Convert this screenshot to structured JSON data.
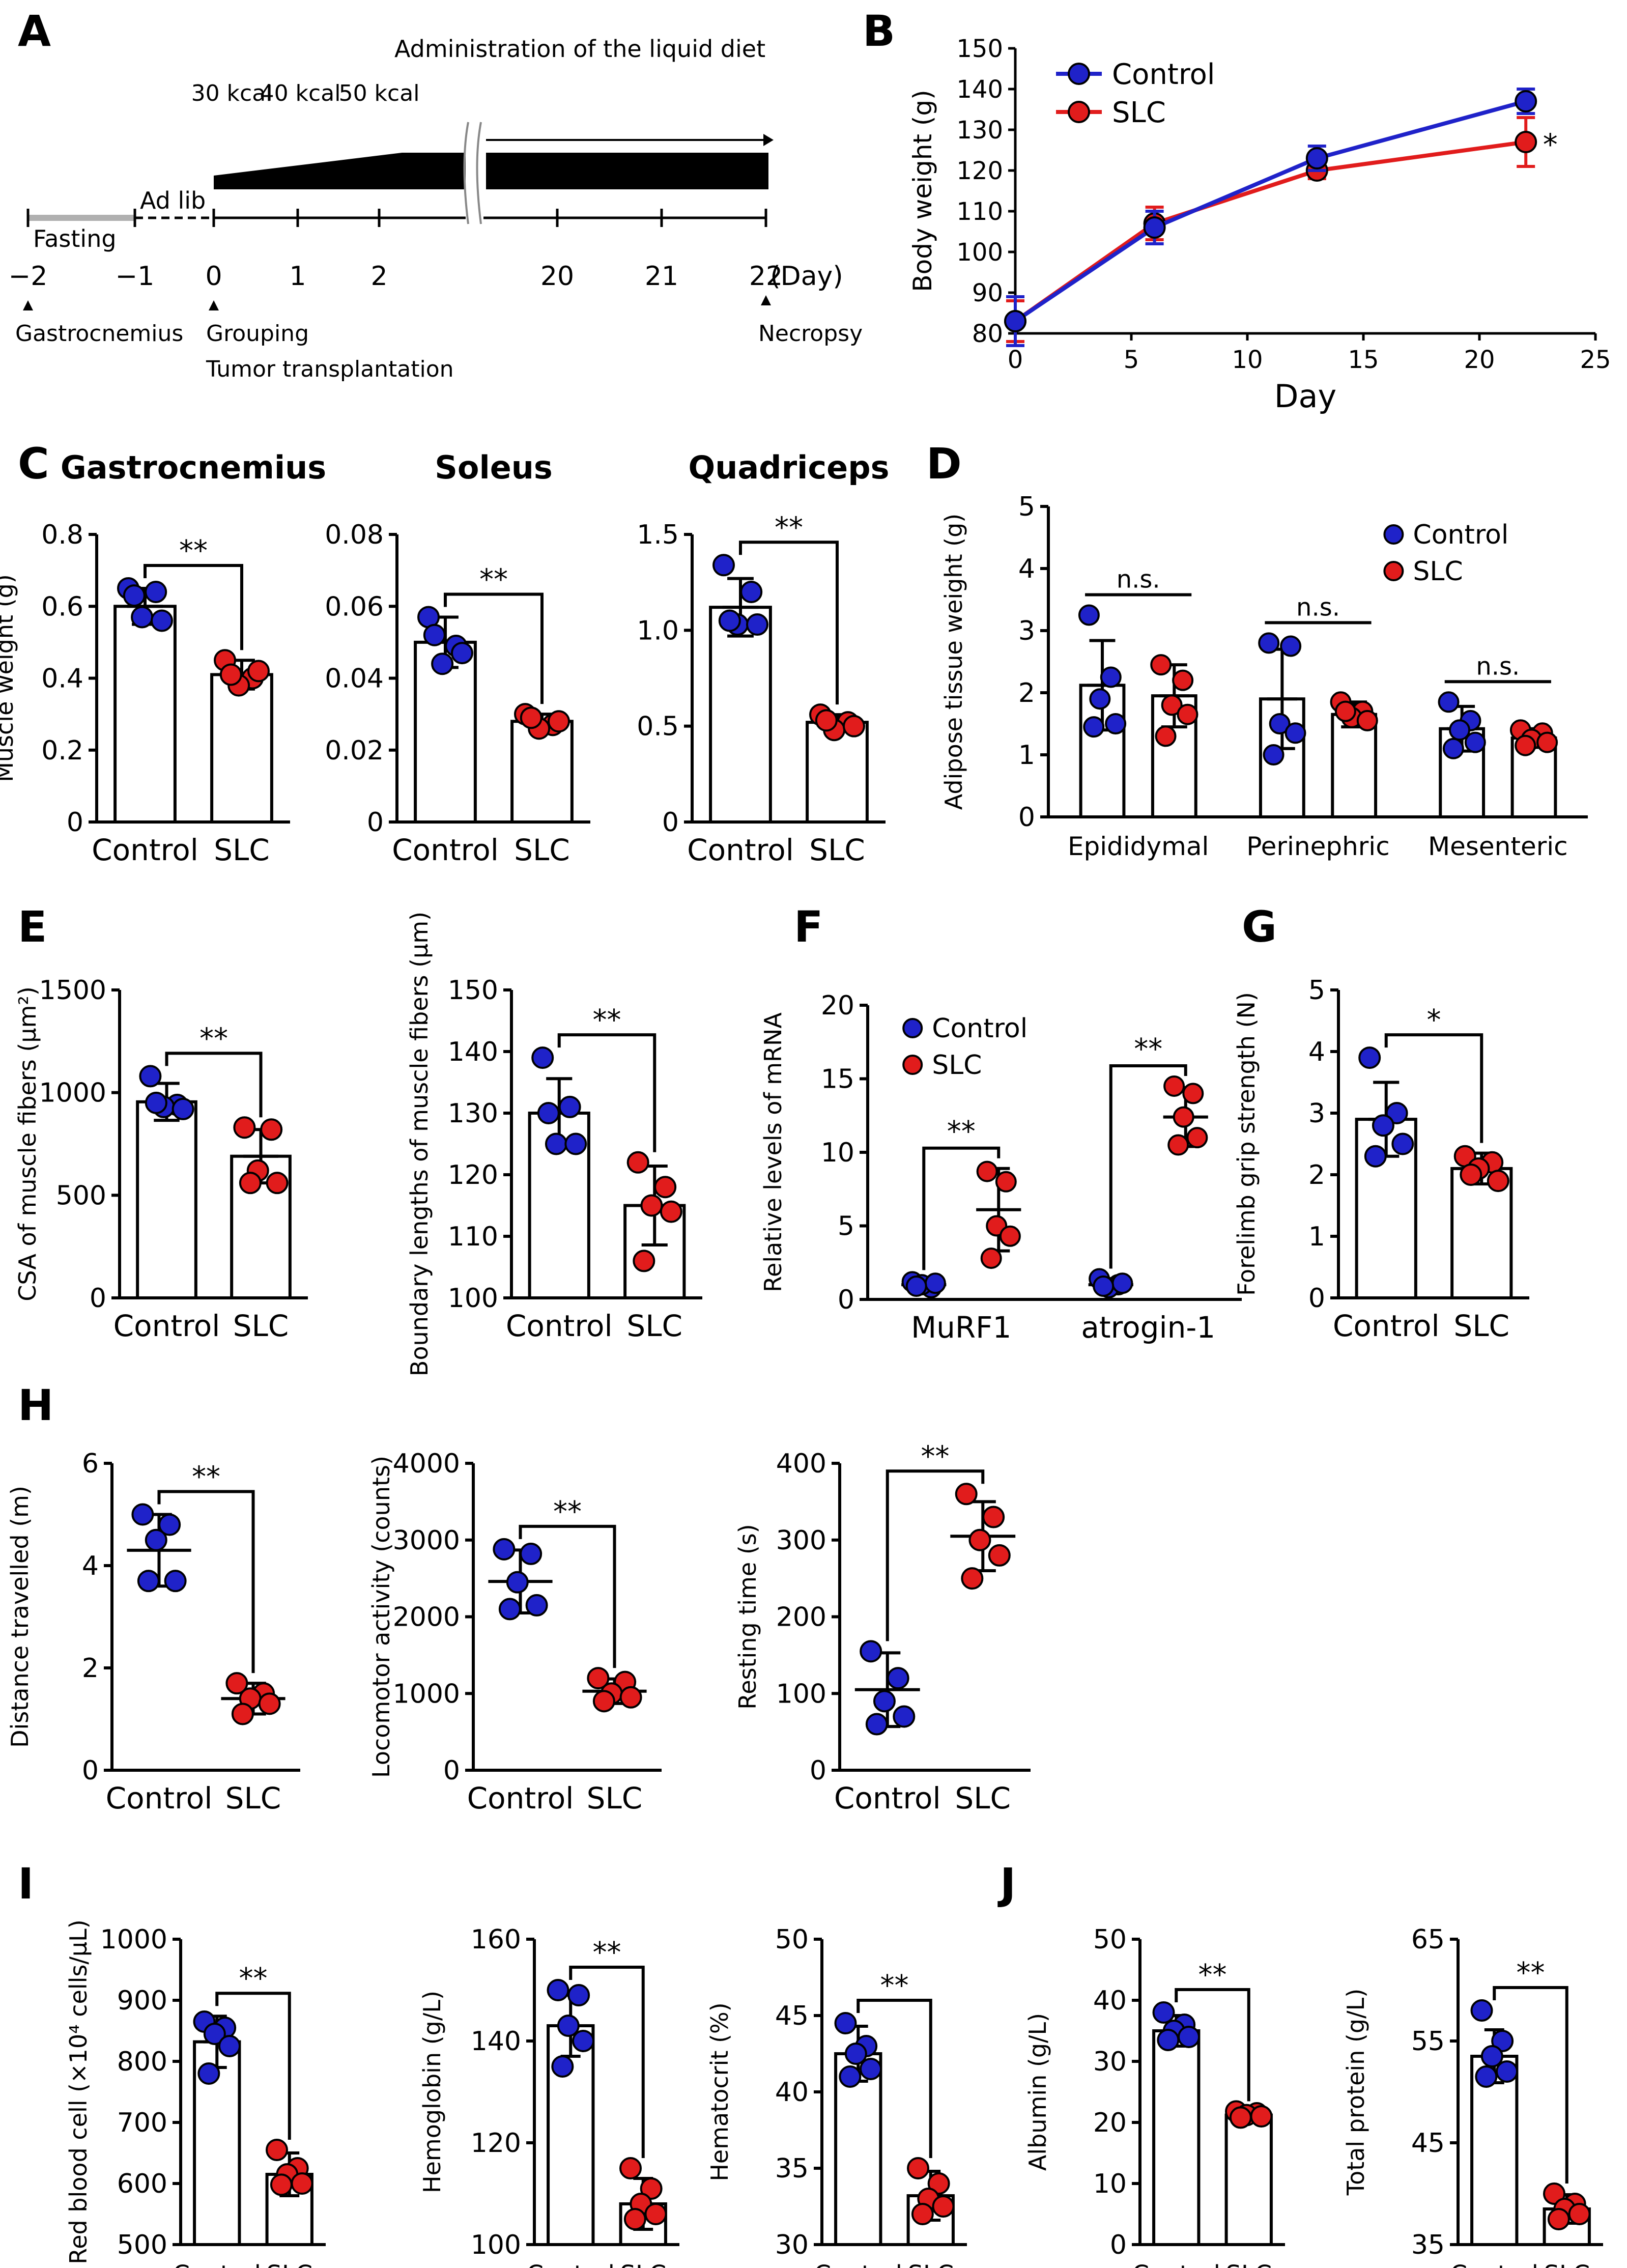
{
  "colors": {
    "control": "#1f22c9",
    "slc": "#e11c1c",
    "axis": "#000000",
    "bar_fill": "#ffffff"
  },
  "panel_letters": {
    "A": "A",
    "B": "B",
    "C": "C",
    "D": "D",
    "E": "E",
    "F": "F",
    "G": "G",
    "H": "H",
    "I": "I",
    "J": "J"
  },
  "panel_a": {
    "header": "Administration of the liquid diet",
    "kcal_labels": [
      "30\nkcal",
      "40\nkcal",
      "50\nkcal"
    ],
    "fasting": "Fasting",
    "ad_lib": "Ad lib",
    "day_ticks": [
      "−2",
      "−1",
      "0",
      "1",
      "2",
      "20",
      "21",
      "22"
    ],
    "day_unit": "(Day)",
    "gastrocnemius": "Gastrocnemius",
    "grouping": "Grouping",
    "tumor": "Tumor transplantation",
    "necropsy": "Necropsy"
  },
  "chart_data": [
    {
      "id": "B",
      "type": "line",
      "title": "",
      "xlabel": "Day",
      "ylabel": "Body weight (g)",
      "xlim": [
        0,
        25
      ],
      "ylim": [
        80,
        150
      ],
      "xticks": [
        0,
        5,
        10,
        15,
        20,
        25
      ],
      "yticks": [
        80,
        90,
        100,
        110,
        120,
        130,
        140,
        150
      ],
      "legend": [
        "Control",
        "SLC"
      ],
      "legend_placement": "top-left",
      "series": [
        {
          "name": "Control",
          "x": [
            0,
            6,
            13,
            22
          ],
          "y": [
            83,
            106,
            123,
            137
          ],
          "err": [
            6,
            4,
            3,
            3
          ]
        },
        {
          "name": "SLC",
          "x": [
            0,
            6,
            13,
            22
          ],
          "y": [
            83,
            107,
            120,
            127
          ],
          "err": [
            5,
            4,
            2,
            6
          ]
        }
      ],
      "annotation": "*"
    },
    {
      "id": "C1",
      "type": "bar",
      "title": "Gastrocnemius",
      "ylabel": "Muscle weight (g)",
      "categories": [
        "Control",
        "SLC"
      ],
      "ylim": [
        0,
        0.8
      ],
      "yticks": [
        "0",
        "0.2",
        "0.4",
        "0.6",
        "0.8"
      ],
      "means": [
        0.6,
        0.41
      ],
      "errs": [
        0.05,
        0.04
      ],
      "points": [
        [
          0.65,
          0.64,
          0.57,
          0.56,
          0.63
        ],
        [
          0.45,
          0.4,
          0.38,
          0.42,
          0.41
        ]
      ],
      "sig": "**"
    },
    {
      "id": "C2",
      "type": "bar",
      "title": "Soleus",
      "ylabel": "",
      "categories": [
        "Control",
        "SLC"
      ],
      "ylim": [
        0,
        0.08
      ],
      "yticks": [
        "0",
        "0.02",
        "0.04",
        "0.06",
        "0.08"
      ],
      "means": [
        0.05,
        0.028
      ],
      "errs": [
        0.007,
        0.002
      ],
      "points": [
        [
          0.057,
          0.049,
          0.044,
          0.047,
          0.052
        ],
        [
          0.03,
          0.027,
          0.026,
          0.028,
          0.029
        ]
      ],
      "sig": "**"
    },
    {
      "id": "C3",
      "type": "bar",
      "title": "Quadriceps",
      "ylabel": "",
      "categories": [
        "Control",
        "SLC"
      ],
      "ylim": [
        0,
        1.5
      ],
      "yticks": [
        "0",
        "0.5",
        "1.0",
        "1.5"
      ],
      "means": [
        1.12,
        0.52
      ],
      "errs": [
        0.15,
        0.04
      ],
      "points": [
        [
          1.34,
          1.2,
          1.03,
          1.03,
          1.05
        ],
        [
          0.56,
          0.52,
          0.48,
          0.5,
          0.53
        ]
      ],
      "sig": "**"
    },
    {
      "id": "D",
      "type": "grouped_bar",
      "title": "",
      "ylabel": "Adipose tissue weight (g)",
      "categories": [
        "Epididymal",
        "Perinephric",
        "Mesenteric"
      ],
      "ylim": [
        0,
        5
      ],
      "yticks": [
        "0",
        "1",
        "2",
        "3",
        "4",
        "5"
      ],
      "series": [
        {
          "name": "Control",
          "means": [
            2.12,
            1.9,
            1.42
          ],
          "errs": [
            0.72,
            0.8,
            0.36
          ],
          "points": [
            [
              3.25,
              2.25,
              1.9,
              1.5,
              1.45
            ],
            [
              2.8,
              2.75,
              1.5,
              1.35,
              1.0
            ],
            [
              1.85,
              1.55,
              1.4,
              1.2,
              1.1
            ]
          ]
        },
        {
          "name": "SLC",
          "means": [
            1.95,
            1.65,
            1.27
          ],
          "errs": [
            0.5,
            0.2,
            0.15
          ],
          "points": [
            [
              2.45,
              2.2,
              1.8,
              1.65,
              1.3
            ],
            [
              1.85,
              1.7,
              1.6,
              1.55,
              1.7
            ],
            [
              1.4,
              1.35,
              1.25,
              1.2,
              1.15
            ]
          ]
        }
      ],
      "sig": [
        "n.s.",
        "n.s.",
        "n.s."
      ],
      "legend_placement": "top-right"
    },
    {
      "id": "E1",
      "type": "bar",
      "title": "",
      "ylabel": "CSA of muscle fibers (μm²)",
      "categories": [
        "Control",
        "SLC"
      ],
      "ylim": [
        0,
        1500
      ],
      "yticks": [
        "0",
        "500",
        "1000",
        "1500"
      ],
      "means": [
        955,
        690
      ],
      "errs": [
        90,
        130
      ],
      "points": [
        [
          1080,
          940,
          930,
          920,
          950
        ],
        [
          830,
          820,
          620,
          560,
          560
        ]
      ],
      "sig": "**"
    },
    {
      "id": "E2",
      "type": "bar",
      "title": "",
      "ylabel": "Boundary lengths of muscle fibers (μm)",
      "categories": [
        "Control",
        "SLC"
      ],
      "ylim": [
        100,
        150
      ],
      "yticks": [
        "100",
        "110",
        "120",
        "130",
        "140",
        "150"
      ],
      "means": [
        130,
        115
      ],
      "errs": [
        5.6,
        6.4
      ],
      "points": [
        [
          139,
          131,
          125,
          125,
          130
        ],
        [
          122,
          118,
          115,
          114,
          106
        ]
      ],
      "sig": "**"
    },
    {
      "id": "F",
      "type": "scatter_mean",
      "title": "",
      "ylabel": "Relative levels of mRNA",
      "categories": [
        "MuRF1",
        "atrogin-1"
      ],
      "ylim": [
        0,
        20
      ],
      "yticks": [
        "0",
        "5",
        "10",
        "15",
        "20"
      ],
      "series": [
        {
          "name": "Control",
          "means": [
            1.0,
            1.0
          ],
          "errs": [
            0.3,
            0.3
          ],
          "points": [
            [
              1.2,
              0.8,
              1.0,
              1.1,
              0.9
            ],
            [
              1.4,
              1.0,
              0.8,
              1.1,
              0.9
            ]
          ]
        },
        {
          "name": "SLC",
          "means": [
            6.1,
            12.4
          ],
          "errs": [
            2.8,
            2.0
          ],
          "points": [
            [
              8.7,
              8.0,
              5.0,
              4.3,
              2.8
            ],
            [
              14.5,
              14.0,
              12.4,
              11.0,
              10.5
            ]
          ]
        }
      ],
      "sig": [
        "**",
        "**"
      ],
      "legend_placement": "top-left"
    },
    {
      "id": "G",
      "type": "bar",
      "title": "",
      "ylabel": "Forelimb grip strength (N)",
      "categories": [
        "Control",
        "SLC"
      ],
      "ylim": [
        0,
        5
      ],
      "yticks": [
        "0",
        "1",
        "2",
        "3",
        "4",
        "5"
      ],
      "means": [
        2.9,
        2.1
      ],
      "errs": [
        0.6,
        0.25
      ],
      "points": [
        [
          3.9,
          3.0,
          2.8,
          2.5,
          2.3
        ],
        [
          2.3,
          2.2,
          2.1,
          1.9,
          2.0
        ]
      ],
      "sig": "*"
    },
    {
      "id": "H1",
      "type": "scatter_mean",
      "title": "",
      "ylabel": "Distance travelled (m)",
      "categories": [
        "Control",
        "SLC"
      ],
      "ylim": [
        0,
        6
      ],
      "yticks": [
        "0",
        "2",
        "4",
        "6"
      ],
      "means": [
        4.3,
        1.4
      ],
      "errs": [
        0.7,
        0.3
      ],
      "points": [
        [
          5.0,
          4.8,
          4.5,
          3.7,
          3.7
        ],
        [
          1.7,
          1.5,
          1.4,
          1.3,
          1.1
        ]
      ],
      "sig": "**"
    },
    {
      "id": "H2",
      "type": "scatter_mean",
      "title": "",
      "ylabel": "Locomotor activity (counts)",
      "categories": [
        "Control",
        "SLC"
      ],
      "ylim": [
        0,
        4000
      ],
      "yticks": [
        "0",
        "1000",
        "2000",
        "3000",
        "4000"
      ],
      "means": [
        2460,
        1030
      ],
      "errs": [
        410,
        160
      ],
      "points": [
        [
          2880,
          2820,
          2450,
          2150,
          2100
        ],
        [
          1200,
          1150,
          1000,
          950,
          900
        ]
      ],
      "sig": "**"
    },
    {
      "id": "H3",
      "type": "scatter_mean",
      "title": "",
      "ylabel": "Resting time (s)",
      "categories": [
        "Control",
        "SLC"
      ],
      "ylim": [
        0,
        400
      ],
      "yticks": [
        "0",
        "100",
        "200",
        "300",
        "400"
      ],
      "means": [
        105,
        305
      ],
      "errs": [
        48,
        45
      ],
      "points": [
        [
          155,
          120,
          90,
          70,
          60
        ],
        [
          360,
          330,
          300,
          280,
          250
        ]
      ],
      "sig": "**"
    },
    {
      "id": "I1",
      "type": "bar",
      "title": "",
      "ylabel": "Red blood cell (×10⁴ cells/μL)",
      "categories": [
        "Control",
        "SLC"
      ],
      "ylim": [
        500,
        1000
      ],
      "yticks": [
        "500",
        "600",
        "700",
        "800",
        "900",
        "1000"
      ],
      "means": [
        832,
        615
      ],
      "errs": [
        42,
        35
      ],
      "points": [
        [
          865,
          855,
          845,
          825,
          780
        ],
        [
          655,
          625,
          615,
          600,
          598
        ]
      ],
      "sig": "**"
    },
    {
      "id": "I2",
      "type": "bar",
      "title": "",
      "ylabel": "Hemoglobin (g/L)",
      "categories": [
        "Control",
        "SLC"
      ],
      "ylim": [
        100,
        160
      ],
      "yticks": [
        "100",
        "120",
        "140",
        "160"
      ],
      "means": [
        143,
        108
      ],
      "errs": [
        6,
        5
      ],
      "points": [
        [
          150,
          149,
          143,
          140,
          135
        ],
        [
          115,
          111,
          108,
          106,
          105
        ]
      ],
      "sig": "**"
    },
    {
      "id": "I3",
      "type": "bar",
      "title": "",
      "ylabel": "Hematocrit (%)",
      "categories": [
        "Control",
        "SLC"
      ],
      "ylim": [
        30,
        50
      ],
      "yticks": [
        "30",
        "35",
        "40",
        "45",
        "50"
      ],
      "means": [
        42.5,
        33.2
      ],
      "errs": [
        1.8,
        1.6
      ],
      "points": [
        [
          44.5,
          43.0,
          42.5,
          41.5,
          41.0
        ],
        [
          35.0,
          34.0,
          33.0,
          32.5,
          32.0
        ]
      ],
      "sig": "**"
    },
    {
      "id": "J1",
      "type": "bar",
      "title": "",
      "ylabel": "Albumin (g/L)",
      "categories": [
        "Control",
        "SLC"
      ],
      "ylim": [
        0,
        50
      ],
      "yticks": [
        "0",
        "10",
        "20",
        "30",
        "40",
        "50"
      ],
      "means": [
        35,
        21.2
      ],
      "errs": [
        2.5,
        0.5
      ],
      "points": [
        [
          38.0,
          36.0,
          35.0,
          34.0,
          33.5
        ],
        [
          21.8,
          21.5,
          21.2,
          21.0,
          20.8
        ]
      ],
      "sig": "**"
    },
    {
      "id": "J2",
      "type": "bar",
      "title": "",
      "ylabel": "Total protein (g/L)",
      "categories": [
        "Control",
        "SLC"
      ],
      "ylim": [
        35,
        65
      ],
      "yticks": [
        "35",
        "45",
        "55",
        "65"
      ],
      "means": [
        53.5,
        38.5
      ],
      "errs": [
        2.6,
        1.4
      ],
      "points": [
        [
          58.0,
          55.0,
          53.5,
          52.0,
          51.5
        ],
        [
          40.0,
          39.0,
          38.5,
          38.0,
          37.5
        ]
      ],
      "sig": "**"
    }
  ]
}
